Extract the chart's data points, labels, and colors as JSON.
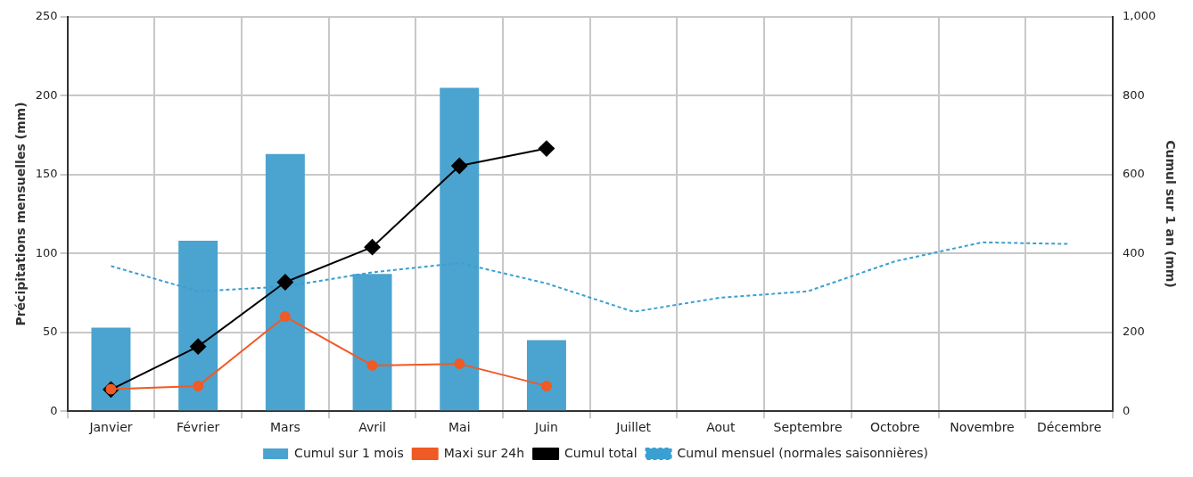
{
  "chart_data": {
    "type": "bar",
    "ylabel": "Précipitations mensuelles (mm)",
    "y2label": "Cumul sur 1 an (mm)",
    "categories": [
      "Janvier",
      "Février",
      "Mars",
      "Avril",
      "Mai",
      "Juin",
      "Juillet",
      "Aout",
      "Septembre",
      "Octobre",
      "Novembre",
      "Décembre"
    ],
    "series": [
      {
        "name": "Cumul sur 1 mois",
        "color": "#4ba3cf",
        "values": [
          53,
          108,
          163,
          87,
          205,
          45,
          null,
          null,
          null,
          null,
          null,
          null
        ]
      },
      {
        "name": "Maxi sur 24h",
        "type": "line",
        "color": "#f05a24",
        "marker": "circle",
        "values": [
          14,
          16,
          60,
          29,
          30,
          16,
          null,
          null,
          null,
          null,
          null,
          null
        ]
      },
      {
        "name": "Cumul total",
        "type": "line",
        "axis": "y2",
        "color": "#000000",
        "marker": "diamond",
        "values": [
          55,
          164,
          327,
          416,
          622,
          666,
          null,
          null,
          null,
          null,
          null,
          null
        ]
      },
      {
        "name": "Cumul mensuel (normales saisonnières)",
        "type": "line",
        "color": "#3a9fd1",
        "marker": "none",
        "line_style": "dashed",
        "values": [
          92,
          76,
          79,
          88,
          94,
          81,
          63,
          72,
          76,
          95,
          107,
          106
        ]
      }
    ],
    "ylim": [
      0,
      250
    ],
    "yticks": [
      0,
      50,
      100,
      150,
      200,
      250
    ],
    "y2lim": [
      0,
      1000
    ],
    "y2ticks": [
      0,
      200,
      400,
      600,
      800,
      {
        "value": 1000,
        "label": "1,000"
      }
    ],
    "grid": true,
    "legend": "bottom"
  }
}
